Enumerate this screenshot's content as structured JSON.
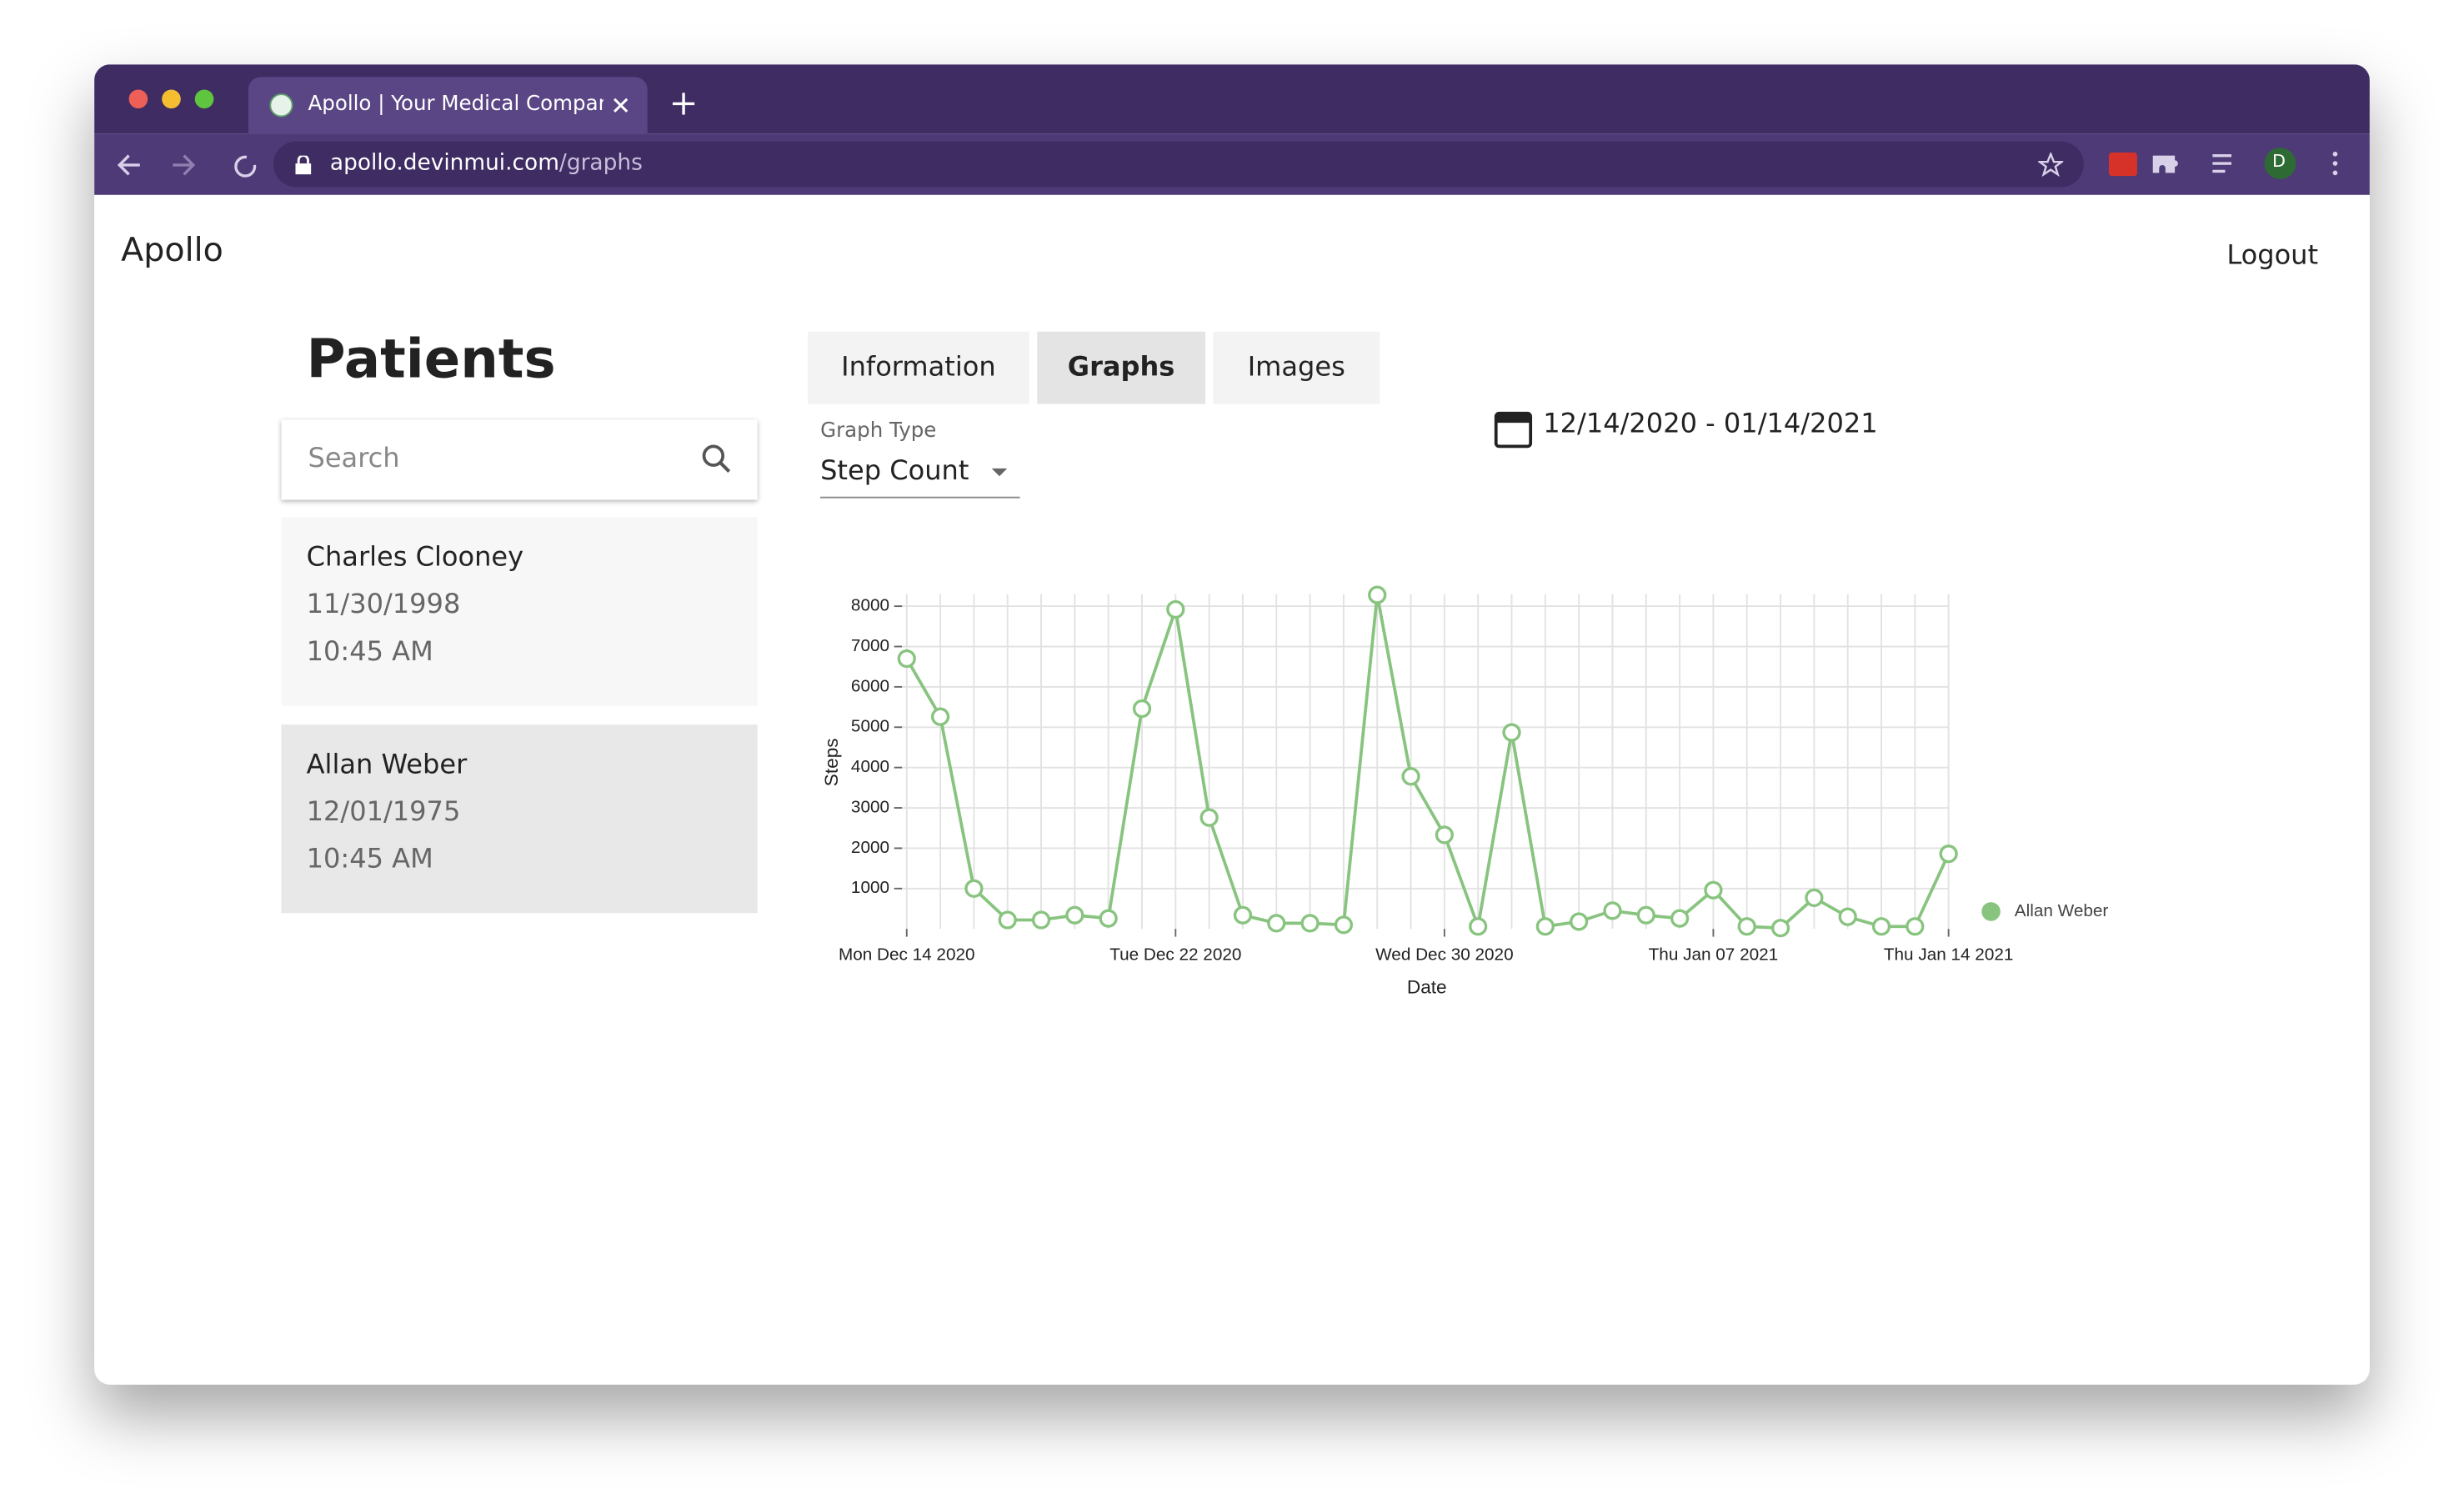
{
  "browser": {
    "tab_title": "Apollo | Your Medical Compani",
    "url_host": "apollo.devinmui.com",
    "url_path": "/graphs",
    "avatar": "D"
  },
  "app": {
    "brand": "Apollo",
    "logout": "Logout",
    "heading": "Patients",
    "search_placeholder": "Search",
    "patients": [
      {
        "name": "Charles Clooney",
        "dob": "11/30/1998",
        "time": "10:45 AM"
      },
      {
        "name": "Allan Weber",
        "dob": "12/01/1975",
        "time": "10:45 AM"
      }
    ],
    "tabs": [
      "Information",
      "Graphs",
      "Images"
    ],
    "graph_type_label": "Graph Type",
    "graph_type_value": "Step Count",
    "date_range": "12/14/2020 - 01/14/2021"
  },
  "chart_data": {
    "type": "line",
    "x_label": "Date",
    "y_label": "Steps",
    "categories": [
      "Mon Dec 14 2020",
      null,
      null,
      null,
      null,
      null,
      null,
      null,
      "Tue Dec 22 2020",
      null,
      null,
      null,
      null,
      null,
      null,
      null,
      "Wed Dec 30 2020",
      null,
      null,
      null,
      null,
      null,
      null,
      null,
      "Thu Jan 07 2021",
      null,
      null,
      null,
      null,
      null,
      null,
      "Thu Jan 14 2021"
    ],
    "series": [
      {
        "name": "Allan Weber",
        "color": "#88c47f",
        "values": [
          6700,
          5260,
          1000,
          220,
          220,
          340,
          260,
          5460,
          7920,
          2760,
          340,
          140,
          140,
          100,
          8280,
          3780,
          2330,
          60,
          4870,
          60,
          180,
          450,
          340,
          260,
          960,
          60,
          20,
          770,
          300,
          60,
          60,
          1860
        ]
      }
    ],
    "ylim": [
      0,
      8300
    ],
    "yticks": [
      1000,
      2000,
      3000,
      4000,
      5000,
      6000,
      7000,
      8000
    ],
    "grid": true,
    "legend": "right"
  }
}
